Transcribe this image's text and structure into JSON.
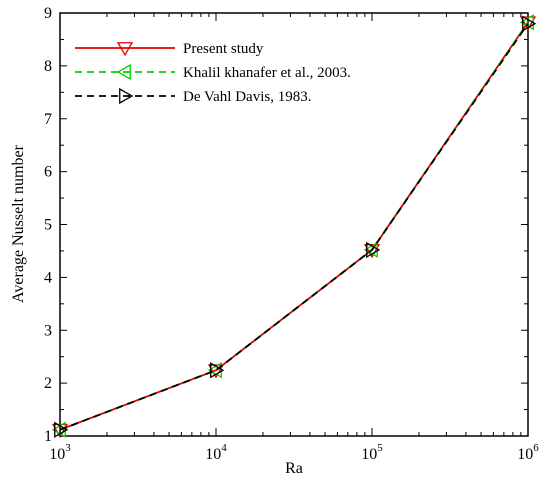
{
  "chart_data": {
    "type": "line",
    "xlabel": "Ra",
    "ylabel": "Average Nusselt number",
    "xscale": "log",
    "xlim": [
      1000,
      1000000
    ],
    "ylim": [
      1,
      9
    ],
    "x_ticks": [
      {
        "value": 1000,
        "base": "10",
        "exp": "3"
      },
      {
        "value": 10000,
        "base": "10",
        "exp": "4"
      },
      {
        "value": 100000,
        "base": "10",
        "exp": "5"
      },
      {
        "value": 1000000,
        "base": "10",
        "exp": "6"
      }
    ],
    "y_ticks": [
      1,
      2,
      3,
      4,
      5,
      6,
      7,
      8,
      9
    ],
    "legend_position": "top-left",
    "grid": false,
    "x": [
      1000,
      10000,
      100000,
      1000000
    ],
    "series": [
      {
        "name": "Present study",
        "values": [
          1.118,
          2.245,
          4.52,
          8.825
        ],
        "color": "#e00000",
        "dash": "solid",
        "marker": "triangle-down"
      },
      {
        "name": "Khalil khanafer et al., 2003.",
        "values": [
          1.118,
          2.245,
          4.522,
          8.826
        ],
        "color": "#00d000",
        "dash": "dashed",
        "marker": "triangle-left"
      },
      {
        "name": "De Vahl Davis,  1983.",
        "values": [
          1.118,
          2.243,
          4.519,
          8.8
        ],
        "color": "#000000",
        "dash": "dashed",
        "marker": "triangle-right"
      }
    ]
  }
}
